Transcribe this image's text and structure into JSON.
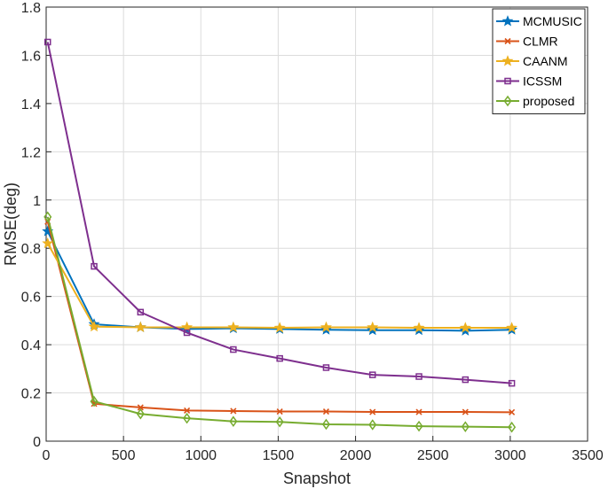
{
  "chart_data": {
    "type": "line",
    "title": "",
    "xlabel": "Snapshot",
    "ylabel": "RMSE(deg)",
    "xlim": [
      0,
      3500
    ],
    "ylim": [
      0,
      1.8
    ],
    "xticks": [
      0,
      500,
      1000,
      1500,
      2000,
      2500,
      3000,
      3500
    ],
    "yticks": [
      0,
      0.2,
      0.4,
      0.6,
      0.8,
      1,
      1.2,
      1.4,
      1.6,
      1.8
    ],
    "xtick_labels": [
      "0",
      "500",
      "1000",
      "1500",
      "2000",
      "2500",
      "3000",
      "3500"
    ],
    "ytick_labels": [
      "0",
      "0.2",
      "0.4",
      "0.6",
      "0.8",
      "1",
      "1.2",
      "1.4",
      "1.6",
      "1.8"
    ],
    "grid": true,
    "legend_position": "top-right",
    "x": [
      10,
      310,
      610,
      910,
      1210,
      1510,
      1810,
      2110,
      2410,
      2710,
      3010
    ],
    "series": [
      {
        "name": "MCMUSIC",
        "color": "#0072BD",
        "marker": "star",
        "values": [
          0.87,
          0.485,
          0.472,
          0.465,
          0.468,
          0.465,
          0.462,
          0.46,
          0.46,
          0.458,
          0.462
        ]
      },
      {
        "name": "CLMR",
        "color": "#D95319",
        "marker": "x",
        "values": [
          0.91,
          0.155,
          0.14,
          0.127,
          0.125,
          0.123,
          0.123,
          0.121,
          0.121,
          0.121,
          0.12
        ]
      },
      {
        "name": "CAANM",
        "color": "#EDB120",
        "marker": "star",
        "values": [
          0.82,
          0.475,
          0.472,
          0.472,
          0.472,
          0.47,
          0.472,
          0.472,
          0.47,
          0.47,
          0.47
        ]
      },
      {
        "name": "ICSSM",
        "color": "#7E2F8E",
        "marker": "square",
        "values": [
          1.655,
          0.725,
          0.535,
          0.45,
          0.38,
          0.343,
          0.305,
          0.275,
          0.268,
          0.255,
          0.24
        ]
      },
      {
        "name": "proposed",
        "color": "#77AC30",
        "marker": "diamond",
        "values": [
          0.93,
          0.165,
          0.113,
          0.095,
          0.082,
          0.08,
          0.07,
          0.068,
          0.062,
          0.06,
          0.058
        ]
      }
    ]
  }
}
